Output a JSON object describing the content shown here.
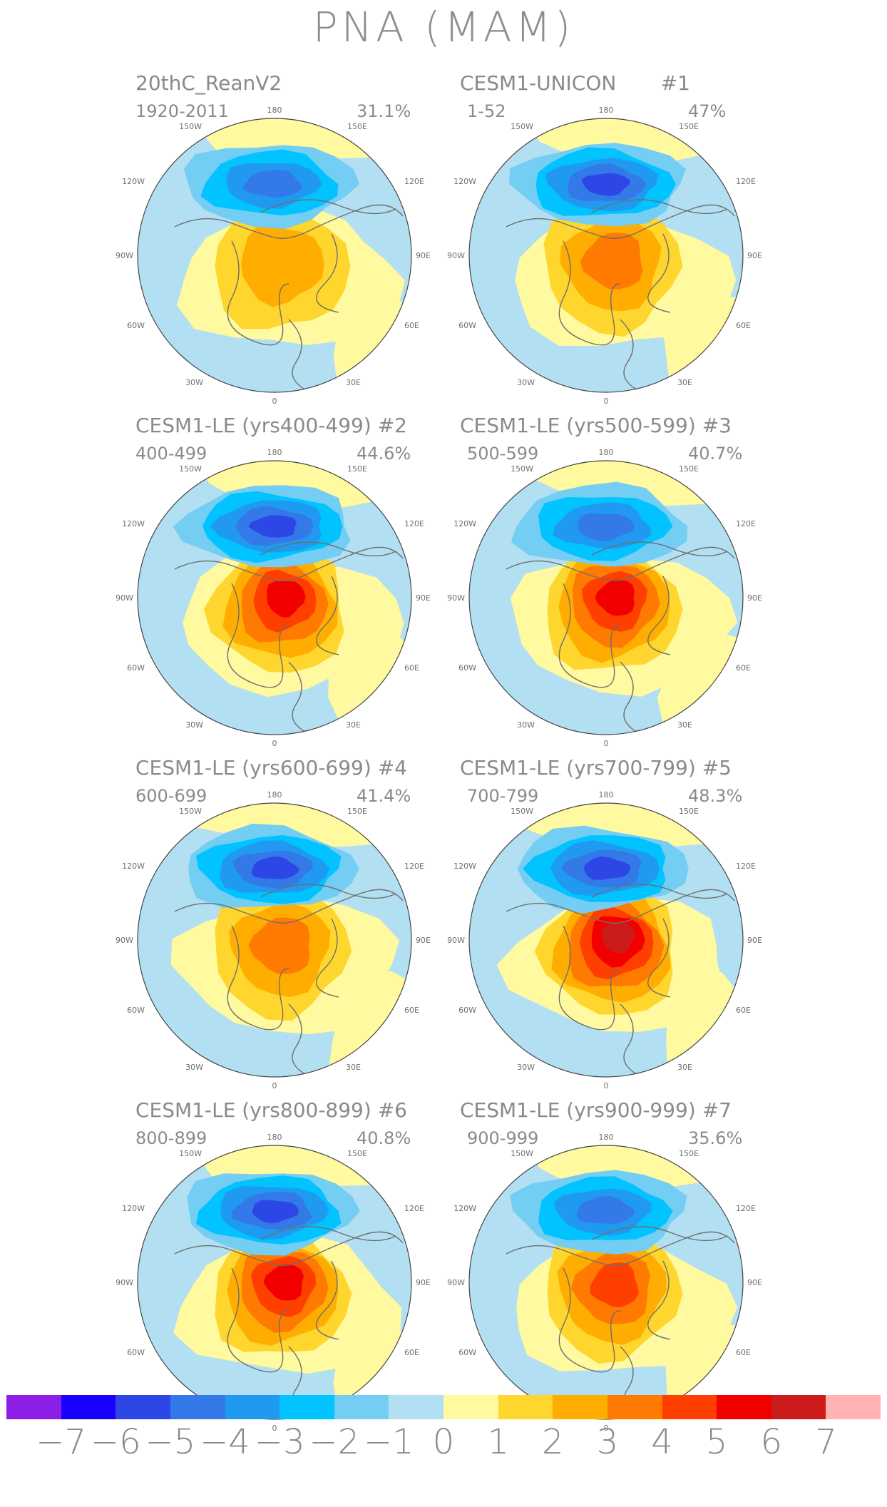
{
  "title": "PNA (MAM)",
  "colors": {
    "land_outline": "#6f6f6f",
    "levels": [
      "#8b1fe6",
      "#1a00ff",
      "#2d46e6",
      "#3479e8",
      "#1f9af0",
      "#00c3ff",
      "#74cdf2",
      "#b3dff2",
      "#fff9a0",
      "#ffd62e",
      "#ffad00",
      "#ff7a00",
      "#ff3f00",
      "#f20000",
      "#cc1b1b",
      "#ffb3b3"
    ]
  },
  "labels": {
    "lon_180": "180",
    "lon_150w": "150W",
    "lon_150e": "150E",
    "lon_120w": "120W",
    "lon_120e": "120E",
    "lon_90w": "90W",
    "lon_90e": "90E",
    "lon_60w": "60W",
    "lon_60e": "60E",
    "lon_30w": "30W",
    "lon_30e": "30E",
    "lon_0": "0"
  },
  "panels": [
    {
      "title": "20thC_ReanV2",
      "period": "1920-2011",
      "pct": "31.1%",
      "neg_max": 4,
      "pos_max": 2
    },
    {
      "title": "CESM1-UNICON       #1",
      "period": "1-52",
      "pct": "47%",
      "neg_max": 5,
      "pos_max": 3
    },
    {
      "title": "CESM1-LE (yrs400-499) #2",
      "period": "400-499",
      "pct": "44.6%",
      "neg_max": 5,
      "pos_max": 5
    },
    {
      "title": "CESM1-LE (yrs500-599) #3",
      "period": "500-599",
      "pct": "40.7%",
      "neg_max": 4,
      "pos_max": 5
    },
    {
      "title": "CESM1-LE (yrs600-699) #4",
      "period": "600-699",
      "pct": "41.4%",
      "neg_max": 5,
      "pos_max": 3
    },
    {
      "title": "CESM1-LE (yrs700-799) #5",
      "period": "700-799",
      "pct": "48.3%",
      "neg_max": 5,
      "pos_max": 6
    },
    {
      "title": "CESM1-LE (yrs800-899) #6",
      "period": "800-899",
      "pct": "40.8%",
      "neg_max": 5,
      "pos_max": 5
    },
    {
      "title": "CESM1-LE (yrs900-999) #7",
      "period": "900-999",
      "pct": "35.6%",
      "neg_max": 4,
      "pos_max": 4
    }
  ],
  "colorbar": {
    "ticks": [
      "−7",
      "−6",
      "−5",
      "−4",
      "−3",
      "−2",
      "−1",
      "0",
      "1",
      "2",
      "3",
      "4",
      "5",
      "6",
      "7"
    ]
  }
}
